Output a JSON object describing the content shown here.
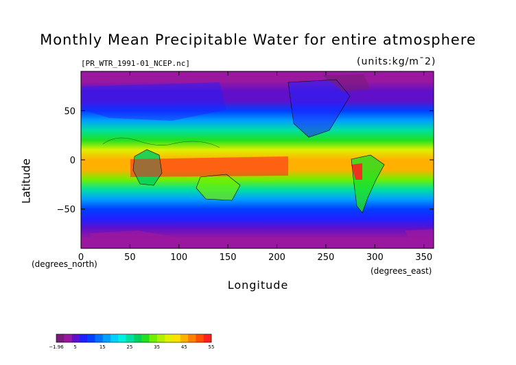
{
  "chart_data": {
    "type": "heatmap",
    "title": "Monthly Mean Precipitable Water for entire atmosphere",
    "subtitle_left": "[PR_WTR_1991-01_NCEP.nc]",
    "subtitle_right": "(units:kg/m¯2)",
    "xlabel": "Longitude",
    "ylabel": "Latitude",
    "x_units_left": "(degrees_north)",
    "x_units_right": "(degrees_east)",
    "xlim": [
      0,
      360
    ],
    "ylim": [
      -90,
      90
    ],
    "x_ticks": [
      "0",
      "50",
      "100",
      "150",
      "200",
      "250",
      "300",
      "350"
    ],
    "y_ticks": [
      "50",
      "0",
      "−50"
    ],
    "colorbar": {
      "ticks": [
        "−1.96",
        "5",
        "15",
        "25",
        "35",
        "45",
        "55"
      ],
      "range": [
        -1.96,
        55
      ],
      "colors": [
        "#7a1a7a",
        "#9a18a0",
        "#6010c8",
        "#2020ff",
        "#0040ff",
        "#0070ff",
        "#00a0ff",
        "#00d0ff",
        "#00f0e0",
        "#00e0a0",
        "#00d060",
        "#20e020",
        "#70f000",
        "#b0f000",
        "#e0f000",
        "#ffe000",
        "#ffb000",
        "#ff8000",
        "#ff5000",
        "#ff2020"
      ]
    },
    "zonal_profile": {
      "latitude": [
        90,
        80,
        70,
        60,
        50,
        40,
        30,
        20,
        10,
        0,
        -10,
        -20,
        -30,
        -40,
        -50,
        -60,
        -70,
        -80,
        -90
      ],
      "value": [
        2,
        3,
        4,
        6,
        10,
        16,
        24,
        32,
        40,
        46,
        44,
        34,
        24,
        16,
        10,
        7,
        5,
        3,
        2
      ]
    }
  }
}
